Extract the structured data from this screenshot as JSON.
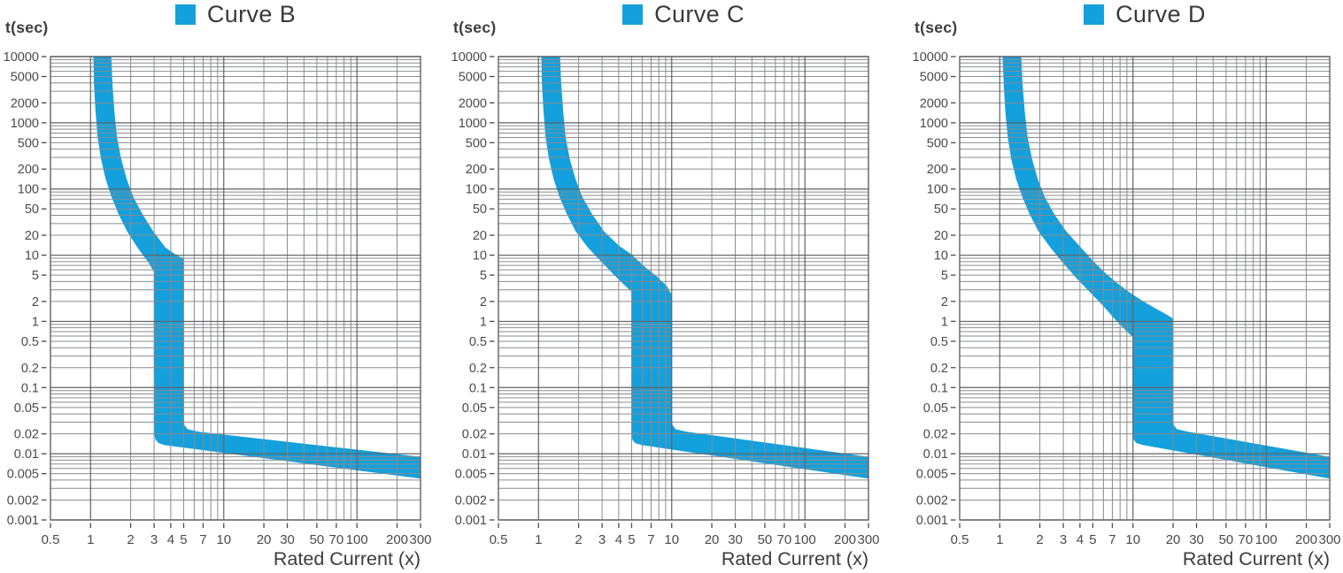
{
  "page": {
    "background": "#ffffff"
  },
  "colors": {
    "band": "#14A0DC",
    "legend_text": "#3a3a3a",
    "title_text": "#3c3c3c",
    "tick_text": "#4a4a4a",
    "grid_minor": "#8a8b8f",
    "grid_major": "#616266"
  },
  "axes": {
    "y_label": "t(sec)",
    "x_label": "Rated Current (x)",
    "x_scale": "log",
    "y_scale": "log",
    "x_range": [
      0.5,
      300
    ],
    "y_range": [
      0.001,
      10000
    ],
    "x_tick_values": [
      0.5,
      1,
      2,
      3,
      4,
      5,
      7,
      10,
      20,
      30,
      50,
      70,
      100,
      200,
      300
    ],
    "x_tick_labels": [
      "0.5",
      "1",
      "2",
      "3",
      "4",
      "5",
      "7",
      "10",
      "20",
      "30",
      "50",
      "70",
      "100",
      "200",
      "300"
    ],
    "y_tick_values": [
      10000,
      5000,
      2000,
      1000,
      500,
      200,
      100,
      50,
      20,
      10,
      5,
      2,
      1,
      0.5,
      0.2,
      0.1,
      0.05,
      0.02,
      0.01,
      0.005,
      0.002,
      0.001
    ],
    "y_tick_labels": [
      "10000",
      "5000",
      "2000",
      "1000",
      "500",
      "200",
      "100",
      "50",
      "20",
      "10",
      "5",
      "2",
      "1",
      "0.5",
      "0.2",
      "0.1",
      "0.05",
      "0.02",
      "0.01",
      "0.005",
      "0.002",
      "0.001"
    ],
    "grid": true
  },
  "chart_data": [
    {
      "type": "area",
      "title": "Curve B",
      "xlabel": "Rated Current (x)",
      "ylabel": "t(sec)",
      "x_scale": "log",
      "y_scale": "log",
      "x_range": [
        0.5,
        300
      ],
      "y_range": [
        0.001,
        10000
      ],
      "legend_position": "top-center",
      "instantaneous_trip_range_x": [
        3,
        5
      ],
      "band": {
        "min_curve": [
          [
            1.05,
            10000
          ],
          [
            1.06,
            4000
          ],
          [
            1.09,
            1500
          ],
          [
            1.13,
            600
          ],
          [
            1.2,
            280
          ],
          [
            1.3,
            140
          ],
          [
            1.44,
            75
          ],
          [
            1.62,
            42
          ],
          [
            1.88,
            23
          ],
          [
            2.25,
            13
          ],
          [
            2.75,
            7.5
          ],
          [
            3,
            5.5
          ],
          [
            3,
            0.021
          ],
          [
            3.06,
            0.0165
          ],
          [
            3.25,
            0.0145
          ],
          [
            3.6,
            0.0135
          ],
          [
            300,
            0.0042
          ]
        ],
        "max_curve": [
          [
            1.43,
            10000
          ],
          [
            1.46,
            4000
          ],
          [
            1.51,
            1500
          ],
          [
            1.58,
            600
          ],
          [
            1.7,
            280
          ],
          [
            1.87,
            140
          ],
          [
            2.1,
            75
          ],
          [
            2.45,
            42
          ],
          [
            2.95,
            23
          ],
          [
            3.65,
            13
          ],
          [
            4.5,
            9.8
          ],
          [
            5,
            9
          ],
          [
            5,
            0.033
          ],
          [
            5.07,
            0.027
          ],
          [
            5.35,
            0.0235
          ],
          [
            6.5,
            0.0215
          ],
          [
            300,
            0.009
          ]
        ]
      }
    },
    {
      "type": "area",
      "title": "Curve C",
      "xlabel": "Rated Current (x)",
      "ylabel": "t(sec)",
      "x_scale": "log",
      "y_scale": "log",
      "x_range": [
        0.5,
        300
      ],
      "y_range": [
        0.001,
        10000
      ],
      "legend_position": "top-center",
      "instantaneous_trip_range_x": [
        5,
        10
      ],
      "band": {
        "min_curve": [
          [
            1.05,
            10000
          ],
          [
            1.06,
            4000
          ],
          [
            1.09,
            1500
          ],
          [
            1.13,
            600
          ],
          [
            1.2,
            280
          ],
          [
            1.3,
            140
          ],
          [
            1.44,
            75
          ],
          [
            1.63,
            42
          ],
          [
            1.9,
            23
          ],
          [
            2.35,
            13
          ],
          [
            2.95,
            8
          ],
          [
            3.7,
            5
          ],
          [
            4.5,
            3.4
          ],
          [
            5,
            2.8
          ],
          [
            5,
            0.021
          ],
          [
            5.06,
            0.0165
          ],
          [
            5.3,
            0.0145
          ],
          [
            6,
            0.0135
          ],
          [
            300,
            0.0042
          ]
        ],
        "max_curve": [
          [
            1.45,
            10000
          ],
          [
            1.48,
            4000
          ],
          [
            1.53,
            1500
          ],
          [
            1.6,
            600
          ],
          [
            1.72,
            280
          ],
          [
            1.9,
            140
          ],
          [
            2.14,
            75
          ],
          [
            2.52,
            42
          ],
          [
            3.1,
            23
          ],
          [
            4,
            14
          ],
          [
            5,
            10.2
          ],
          [
            6.2,
            6.8
          ],
          [
            7.7,
            4.8
          ],
          [
            9.2,
            3.4
          ],
          [
            10,
            2.5
          ],
          [
            10,
            0.033
          ],
          [
            10.15,
            0.027
          ],
          [
            10.7,
            0.0235
          ],
          [
            13,
            0.0215
          ],
          [
            300,
            0.009
          ]
        ]
      }
    },
    {
      "type": "area",
      "title": "Curve D",
      "xlabel": "Rated Current (x)",
      "ylabel": "t(sec)",
      "x_scale": "log",
      "y_scale": "log",
      "x_range": [
        0.5,
        300
      ],
      "y_range": [
        0.001,
        10000
      ],
      "legend_position": "top-center",
      "instantaneous_trip_range_x": [
        10,
        20
      ],
      "band": {
        "min_curve": [
          [
            1.05,
            10000
          ],
          [
            1.07,
            4000
          ],
          [
            1.1,
            1500
          ],
          [
            1.15,
            600
          ],
          [
            1.22,
            280
          ],
          [
            1.33,
            140
          ],
          [
            1.48,
            75
          ],
          [
            1.67,
            42
          ],
          [
            1.95,
            23
          ],
          [
            2.4,
            13
          ],
          [
            3,
            7.5
          ],
          [
            3.8,
            4.4
          ],
          [
            4.8,
            2.7
          ],
          [
            6,
            1.7
          ],
          [
            7.4,
            1.05
          ],
          [
            9,
            0.7
          ],
          [
            10,
            0.58
          ],
          [
            10,
            0.021
          ],
          [
            10.1,
            0.0165
          ],
          [
            10.6,
            0.0145
          ],
          [
            12,
            0.0135
          ],
          [
            300,
            0.0042
          ]
        ],
        "max_curve": [
          [
            1.45,
            10000
          ],
          [
            1.48,
            4000
          ],
          [
            1.54,
            1500
          ],
          [
            1.62,
            600
          ],
          [
            1.75,
            280
          ],
          [
            1.93,
            140
          ],
          [
            2.18,
            75
          ],
          [
            2.56,
            42
          ],
          [
            3.15,
            23
          ],
          [
            4,
            13.5
          ],
          [
            5,
            8.2
          ],
          [
            6.3,
            5.2
          ],
          [
            8,
            3.5
          ],
          [
            9.8,
            2.6
          ],
          [
            12,
            2
          ],
          [
            14.5,
            1.6
          ],
          [
            17.5,
            1.3
          ],
          [
            20,
            1.1
          ],
          [
            20,
            0.033
          ],
          [
            20.3,
            0.027
          ],
          [
            21.4,
            0.0235
          ],
          [
            26,
            0.0215
          ],
          [
            300,
            0.009
          ]
        ]
      }
    }
  ]
}
